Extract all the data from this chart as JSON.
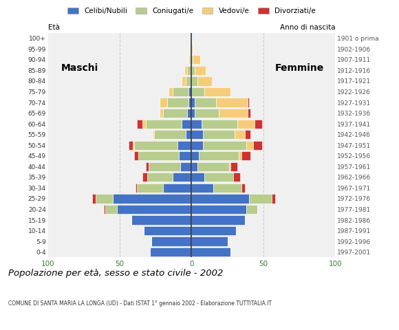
{
  "age_groups": [
    "0-4",
    "5-9",
    "10-14",
    "15-19",
    "20-24",
    "25-29",
    "30-34",
    "35-39",
    "40-44",
    "45-49",
    "50-54",
    "55-59",
    "60-64",
    "65-69",
    "70-74",
    "75-79",
    "80-84",
    "85-89",
    "90-94",
    "95-99",
    "100+"
  ],
  "birth_years": [
    "1997-2001",
    "1992-1996",
    "1987-1991",
    "1982-1986",
    "1977-1981",
    "1972-1976",
    "1967-1971",
    "1962-1966",
    "1957-1961",
    "1952-1956",
    "1947-1951",
    "1942-1946",
    "1937-1941",
    "1932-1936",
    "1927-1931",
    "1922-1926",
    "1917-1921",
    "1912-1916",
    "1907-1911",
    "1902-1906",
    "1901 o prima"
  ],
  "males": {
    "celibi": [
      29,
      28,
      33,
      42,
      52,
      55,
      20,
      13,
      8,
      9,
      10,
      4,
      7,
      3,
      2,
      2,
      0,
      0,
      0,
      0,
      0
    ],
    "coniugati": [
      0,
      0,
      0,
      0,
      8,
      12,
      18,
      18,
      22,
      28,
      30,
      22,
      25,
      17,
      15,
      11,
      4,
      3,
      1,
      0,
      0
    ],
    "vedovi": [
      0,
      0,
      0,
      0,
      0,
      0,
      0,
      0,
      0,
      0,
      1,
      1,
      2,
      2,
      5,
      3,
      3,
      2,
      1,
      0,
      0
    ],
    "divorziati": [
      0,
      0,
      0,
      0,
      1,
      2,
      1,
      3,
      2,
      3,
      3,
      0,
      4,
      0,
      0,
      0,
      0,
      0,
      0,
      0,
      0
    ]
  },
  "females": {
    "celibi": [
      27,
      25,
      31,
      37,
      38,
      40,
      15,
      9,
      4,
      5,
      8,
      8,
      7,
      2,
      2,
      0,
      0,
      0,
      0,
      0,
      0
    ],
    "coniugati": [
      0,
      0,
      0,
      0,
      8,
      16,
      20,
      20,
      22,
      28,
      30,
      22,
      25,
      17,
      15,
      9,
      4,
      2,
      1,
      0,
      0
    ],
    "vedovi": [
      0,
      0,
      0,
      0,
      0,
      0,
      0,
      0,
      1,
      2,
      5,
      7,
      12,
      20,
      22,
      18,
      10,
      8,
      5,
      1,
      0
    ],
    "divorziati": [
      0,
      0,
      0,
      0,
      0,
      2,
      2,
      5,
      5,
      6,
      6,
      4,
      5,
      2,
      1,
      0,
      0,
      0,
      0,
      0,
      0
    ]
  },
  "colors": {
    "celibi": "#4472c4",
    "coniugati": "#b8cc8e",
    "vedovi": "#f5cd7a",
    "divorziati": "#cc3333"
  },
  "legend_labels": [
    "Celibi/Nubili",
    "Coniugati/e",
    "Vedovi/e",
    "Divorziati/e"
  ],
  "title": "Popolazione per età, sesso e stato civile - 2002",
  "subtitle": "COMUNE DI SANTA MARIA LA LONGA (UD) - Dati ISTAT 1° gennaio 2002 - Elaborazione TUTTITALIA.IT",
  "xlabel_left": "Maschi",
  "xlabel_right": "Femmine",
  "ylabel_left": "À Età",
  "ylabel_right": "Anno di nascita",
  "xlim": 100,
  "grid_color": "#cccccc",
  "bg_color": "#ffffff",
  "plot_bg": "#f0f0f0"
}
